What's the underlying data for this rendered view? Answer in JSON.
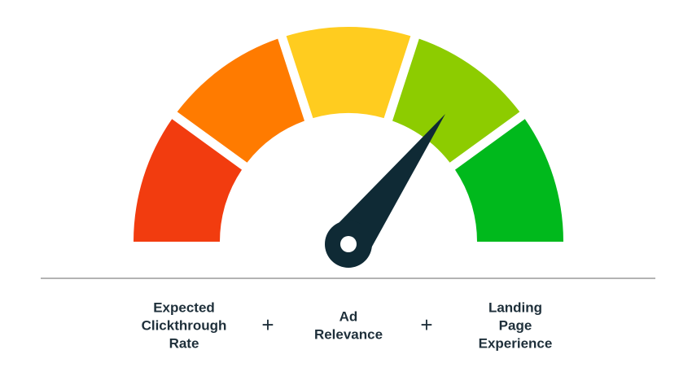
{
  "labels": [
    {
      "lines": [
        "Expected",
        "Clickthrough",
        "Rate"
      ]
    },
    {
      "lines": [
        "Ad",
        "Relevance"
      ]
    },
    {
      "lines": [
        "Landing",
        "Page",
        "Experience"
      ]
    }
  ],
  "operators": [
    "+",
    "+"
  ]
}
